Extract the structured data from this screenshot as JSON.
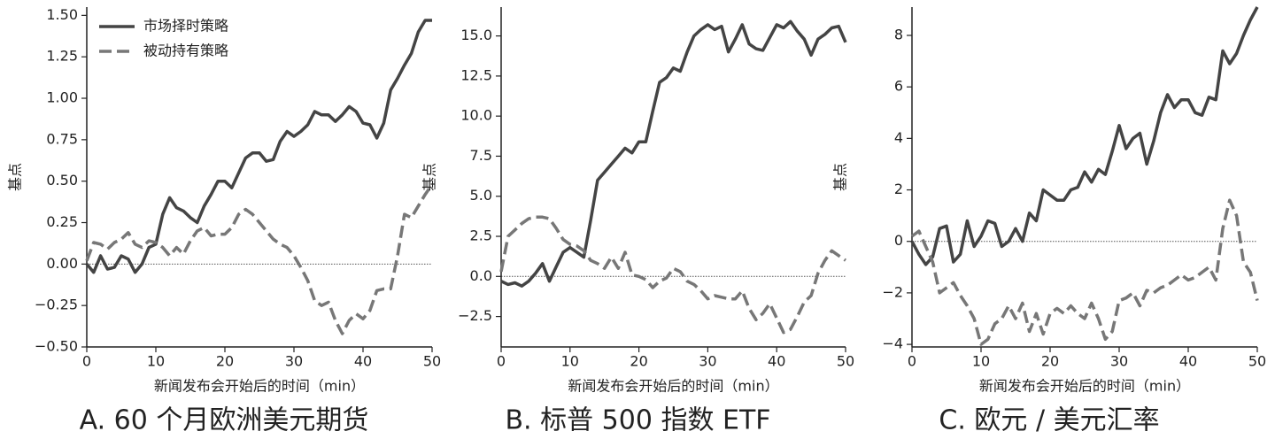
{
  "chart_data": [
    {
      "type": "line",
      "title": "A. 60 个月欧洲美元期货",
      "x_label": "新闻发布会开始后的时间（min）",
      "y_label": "基点",
      "x": [
        0,
        1,
        2,
        3,
        4,
        5,
        6,
        7,
        8,
        9,
        10,
        11,
        12,
        13,
        14,
        15,
        16,
        17,
        18,
        19,
        20,
        21,
        22,
        23,
        24,
        25,
        26,
        27,
        28,
        29,
        30,
        31,
        32,
        33,
        34,
        35,
        36,
        37,
        38,
        39,
        40,
        41,
        42,
        43,
        44,
        45,
        46,
        47,
        48,
        49,
        50
      ],
      "series": [
        {
          "name": "市场择时策略",
          "color": "#444444",
          "style": "solid",
          "values": [
            0,
            -0.05,
            0.05,
            -0.03,
            -0.02,
            0.05,
            0.03,
            -0.05,
            0,
            0.1,
            0.12,
            0.3,
            0.4,
            0.34,
            0.32,
            0.28,
            0.25,
            0.35,
            0.42,
            0.5,
            0.5,
            0.46,
            0.55,
            0.64,
            0.67,
            0.67,
            0.62,
            0.63,
            0.74,
            0.8,
            0.77,
            0.8,
            0.84,
            0.92,
            0.9,
            0.9,
            0.86,
            0.9,
            0.95,
            0.92,
            0.85,
            0.84,
            0.76,
            0.85,
            1.05,
            1.12,
            1.2,
            1.27,
            1.4,
            1.47,
            1.47
          ]
        },
        {
          "name": "被动持有策略",
          "color": "#777777",
          "style": "dashed",
          "values": [
            0.02,
            0.13,
            0.12,
            0.09,
            0.13,
            0.15,
            0.19,
            0.12,
            0.1,
            0.14,
            0.13,
            0.1,
            0.05,
            0.1,
            0.06,
            0.14,
            0.2,
            0.22,
            0.17,
            0.18,
            0.18,
            0.22,
            0.3,
            0.33,
            0.3,
            0.25,
            0.2,
            0.15,
            0.12,
            0.1,
            0.05,
            -0.02,
            -0.1,
            -0.22,
            -0.25,
            -0.23,
            -0.34,
            -0.42,
            -0.34,
            -0.3,
            -0.33,
            -0.28,
            -0.16,
            -0.15,
            -0.15,
            0.05,
            0.3,
            0.28,
            0.35,
            0.42,
            0.48
          ]
        }
      ],
      "xlim": [
        0,
        50
      ],
      "xticks": [
        0,
        10,
        20,
        30,
        40,
        50
      ],
      "ylim": [
        -0.5,
        1.55
      ],
      "yticks": [
        {
          "value": -0.5,
          "label": "−0.50"
        },
        {
          "value": -0.25,
          "label": "−0.25"
        },
        {
          "value": 0,
          "label": "0.00"
        },
        0.25,
        {
          "value": 0.5,
          "label": "0.50"
        },
        0.75,
        {
          "value": 1,
          "label": "1.00"
        },
        1.25,
        {
          "value": 1.5,
          "label": "1.50"
        }
      ],
      "hline": 0,
      "legend": "upper left"
    },
    {
      "type": "line",
      "title": "B. 标普 500 指数 ETF",
      "x_label": "新闻发布会开始后的时间（min）",
      "y_label": "基点",
      "x": [
        0,
        1,
        2,
        3,
        4,
        5,
        6,
        7,
        8,
        9,
        10,
        11,
        12,
        13,
        14,
        15,
        16,
        17,
        18,
        19,
        20,
        21,
        22,
        23,
        24,
        25,
        26,
        27,
        28,
        29,
        30,
        31,
        32,
        33,
        34,
        35,
        36,
        37,
        38,
        39,
        40,
        41,
        42,
        43,
        44,
        45,
        46,
        47,
        48,
        49,
        50
      ],
      "series": [
        {
          "color": "#444444",
          "style": "solid",
          "values": [
            -0.3,
            -0.5,
            -0.4,
            -0.6,
            -0.3,
            0.2,
            0.8,
            -0.3,
            0.6,
            1.5,
            1.8,
            1.5,
            1.2,
            3.5,
            6,
            6.5,
            7,
            7.5,
            8,
            7.7,
            8.4,
            8.4,
            10.3,
            12.1,
            12.4,
            13,
            12.8,
            14,
            15,
            15.4,
            15.7,
            15.4,
            15.6,
            14,
            14.8,
            15.7,
            14.5,
            14.2,
            14.1,
            14.9,
            15.7,
            15.5,
            15.9,
            15.3,
            14.8,
            13.8,
            14.8,
            15.1,
            15.5,
            15.6,
            14.6
          ]
        },
        {
          "color": "#777777",
          "style": "dashed",
          "values": [
            0.3,
            2.5,
            2.9,
            3.3,
            3.6,
            3.7,
            3.7,
            3.6,
            3,
            2.3,
            2,
            1.9,
            1.6,
            1,
            0.8,
            0.5,
            1.2,
            0.5,
            1.5,
            0.1,
            0,
            -0.2,
            -0.7,
            -0.3,
            -0.1,
            0.5,
            0.3,
            -0.3,
            -0.5,
            -0.9,
            -1.4,
            -1.2,
            -1.3,
            -1.4,
            -1.4,
            -0.9,
            -2,
            -2.7,
            -2.3,
            -1.7,
            -2.6,
            -3.5,
            -3.3,
            -2.5,
            -1.6,
            -1.2,
            0.2,
            1,
            1.6,
            1.3,
            1
          ]
        }
      ],
      "xlim": [
        0,
        50
      ],
      "xticks": [
        0,
        10,
        20,
        30,
        40,
        50
      ],
      "ylim": [
        -4.4,
        16.8
      ],
      "yticks": [
        {
          "value": -2.5,
          "label": "−2.5"
        },
        {
          "value": 0,
          "label": "0.0"
        },
        2.5,
        {
          "value": 5,
          "label": "5.0"
        },
        7.5,
        {
          "value": 10,
          "label": "10.0"
        },
        12.5,
        {
          "value": 15,
          "label": "15.0"
        }
      ],
      "hline": 0
    },
    {
      "type": "line",
      "title": "C. 欧元 / 美元汇率",
      "x_label": "新闻发布会开始后的时间（min）",
      "y_label": "基点",
      "x": [
        0,
        1,
        2,
        3,
        4,
        5,
        6,
        7,
        8,
        9,
        10,
        11,
        12,
        13,
        14,
        15,
        16,
        17,
        18,
        19,
        20,
        21,
        22,
        23,
        24,
        25,
        26,
        27,
        28,
        29,
        30,
        31,
        32,
        33,
        34,
        35,
        36,
        37,
        38,
        39,
        40,
        41,
        42,
        43,
        44,
        45,
        46,
        47,
        48,
        49,
        50
      ],
      "series": [
        {
          "color": "#444444",
          "style": "solid",
          "values": [
            0,
            -0.5,
            -0.9,
            -0.6,
            0.5,
            0.6,
            -0.8,
            -0.5,
            0.8,
            -0.2,
            0.2,
            0.8,
            0.7,
            -0.2,
            0,
            0.5,
            0,
            1.1,
            0.8,
            2,
            1.8,
            1.6,
            1.6,
            2,
            2.1,
            2.7,
            2.3,
            2.8,
            2.6,
            3.5,
            4.5,
            3.6,
            4,
            4.2,
            3,
            3.9,
            5,
            5.7,
            5.2,
            5.5,
            5.5,
            5,
            4.9,
            5.6,
            5.5,
            7.4,
            6.9,
            7.3,
            8,
            8.6,
            9.1
          ]
        },
        {
          "color": "#777777",
          "style": "dashed",
          "values": [
            0.2,
            0.4,
            -0.2,
            -0.8,
            -2,
            -1.8,
            -1.6,
            -2.1,
            -2.5,
            -3,
            -4,
            -3.8,
            -3.2,
            -3,
            -2.5,
            -3,
            -2.4,
            -3.5,
            -2.8,
            -3.6,
            -2.8,
            -2.6,
            -2.8,
            -2.5,
            -2.8,
            -3,
            -2.4,
            -3,
            -3.8,
            -3.5,
            -2.3,
            -2.2,
            -2,
            -2.5,
            -1.9,
            -2,
            -1.8,
            -1.7,
            -1.5,
            -1.3,
            -1.5,
            -1.4,
            -1.2,
            -1,
            -1.5,
            0.5,
            1.6,
            1,
            -0.8,
            -1.2,
            -2.3
          ]
        }
      ],
      "xlim": [
        0,
        50
      ],
      "xticks": [
        0,
        10,
        20,
        30,
        40,
        50
      ],
      "ylim": [
        -4.1,
        9.1
      ],
      "yticks": [
        {
          "value": -4,
          "label": "−4"
        },
        {
          "value": -2,
          "label": "−2"
        },
        0,
        2,
        4,
        6,
        8
      ],
      "hline": 0
    }
  ]
}
